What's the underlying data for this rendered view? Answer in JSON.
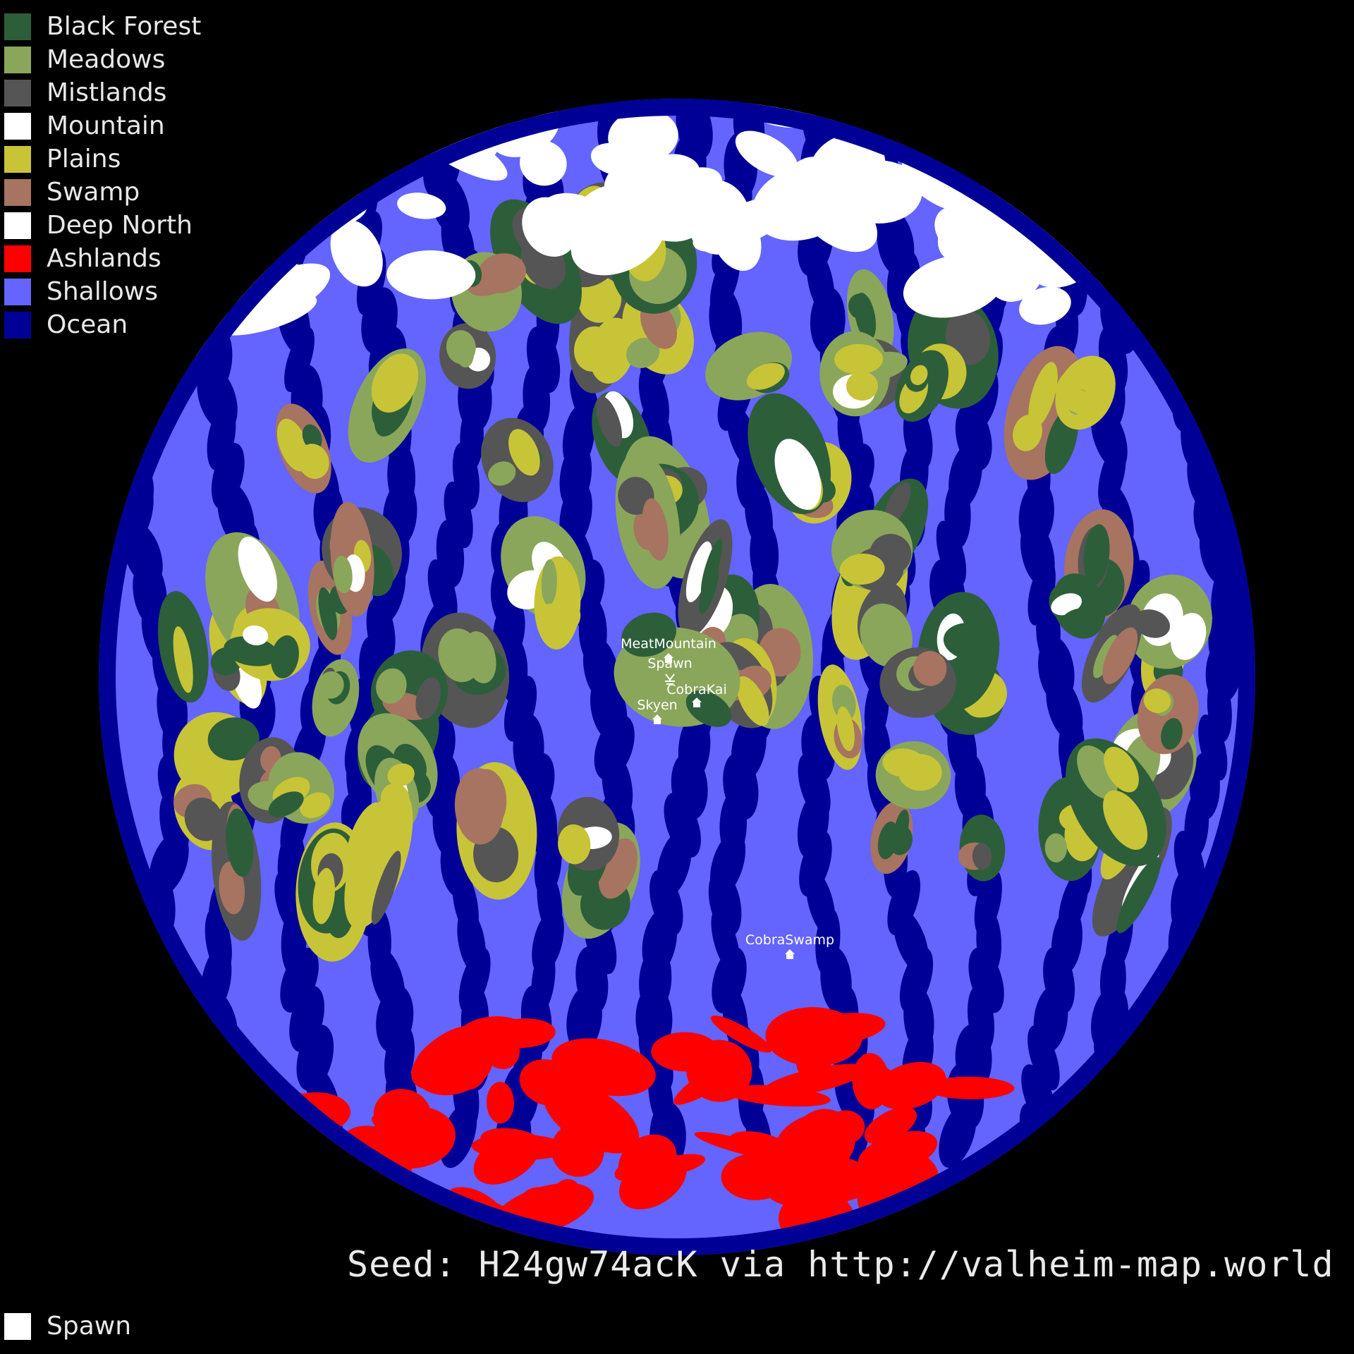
{
  "legend": {
    "items": [
      {
        "label": "Black Forest",
        "color": "#2d5e3a"
      },
      {
        "label": "Meadows",
        "color": "#8aa65b"
      },
      {
        "label": "Mistlands",
        "color": "#555555"
      },
      {
        "label": "Mountain",
        "color": "#ffffff"
      },
      {
        "label": "Plains",
        "color": "#c8c437"
      },
      {
        "label": "Swamp",
        "color": "#a67460"
      },
      {
        "label": "Deep North",
        "color": "#ffffff"
      },
      {
        "label": "Ashlands",
        "color": "#ff0000"
      },
      {
        "label": "Shallows",
        "color": "#6464ff"
      },
      {
        "label": "Ocean",
        "color": "#000096"
      }
    ],
    "spawn": {
      "label": "Spawn",
      "color": "#ffffff"
    }
  },
  "seed_line": "Seed: H24gw74acK via http://valheim-map.world",
  "markers": [
    {
      "label": "MeatMountain",
      "icon": "house-icon"
    },
    {
      "label": "Spawn",
      "icon": "spawn-icon"
    },
    {
      "label": "CobraKai",
      "icon": "house-icon"
    },
    {
      "label": "Skyen",
      "icon": "house-icon"
    },
    {
      "label": "CobraSwamp",
      "icon": "house-icon"
    }
  ]
}
